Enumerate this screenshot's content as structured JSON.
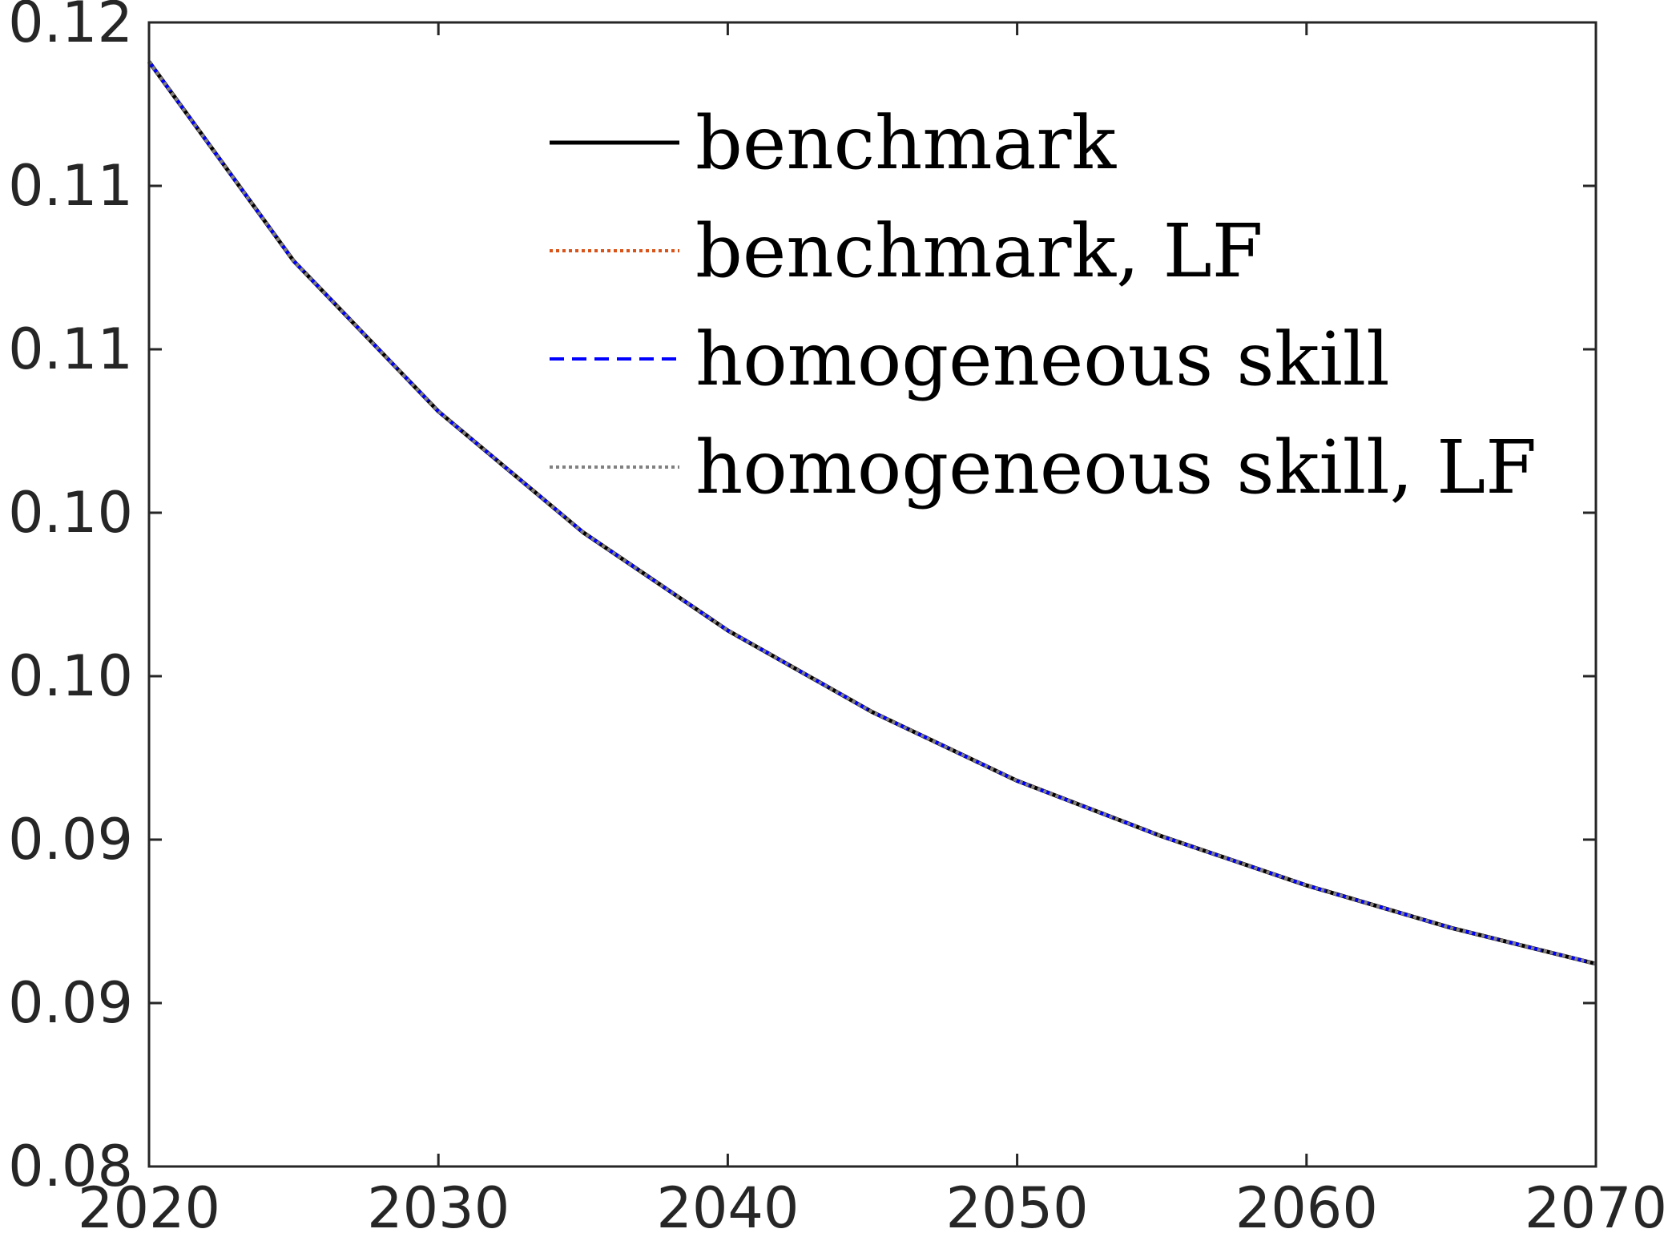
{
  "chart_data": {
    "type": "line",
    "title": "",
    "xlabel": "",
    "ylabel": "",
    "xlim": [
      2020,
      2070
    ],
    "ylim": [
      0.08,
      0.115
    ],
    "grid": false,
    "legend_position": "top-right",
    "x_ticks": [
      {
        "value": 2020,
        "label": "2020"
      },
      {
        "value": 2030,
        "label": "2030"
      },
      {
        "value": 2040,
        "label": "2040"
      },
      {
        "value": 2050,
        "label": "2050"
      },
      {
        "value": 2060,
        "label": "2060"
      },
      {
        "value": 2070,
        "label": "2070"
      }
    ],
    "y_ticks": [
      {
        "value": 0.08,
        "label": "0.08"
      },
      {
        "value": 0.085,
        "label": "0.09"
      },
      {
        "value": 0.09,
        "label": "0.09"
      },
      {
        "value": 0.095,
        "label": "0.10"
      },
      {
        "value": 0.1,
        "label": "0.10"
      },
      {
        "value": 0.105,
        "label": "0.11"
      },
      {
        "value": 0.11,
        "label": "0.11"
      },
      {
        "value": 0.115,
        "label": "0.12"
      }
    ],
    "x": [
      2020,
      2025,
      2030,
      2035,
      2040,
      2045,
      2050,
      2055,
      2060,
      2065,
      2070
    ],
    "series": [
      {
        "name": "benchmark",
        "color": "#000000",
        "style": "solid",
        "values": [
          0.1138,
          0.1077,
          0.1031,
          0.0994,
          0.0964,
          0.0939,
          0.0918,
          0.0901,
          0.0886,
          0.0873,
          0.0862
        ]
      },
      {
        "name": "benchmark, LF",
        "color": "#d95319",
        "style": "dotted",
        "values": [
          0.1138,
          0.1077,
          0.1031,
          0.0994,
          0.0964,
          0.0939,
          0.0918,
          0.0901,
          0.0886,
          0.0873,
          0.0862
        ]
      },
      {
        "name": "homogeneous skill",
        "color": "#0000ff",
        "style": "dashed",
        "values": [
          0.1138,
          0.1077,
          0.1031,
          0.0994,
          0.0964,
          0.0939,
          0.0918,
          0.0901,
          0.0886,
          0.0873,
          0.0862
        ]
      },
      {
        "name": "homogeneous skill, LF",
        "color": "#808080",
        "style": "dotted",
        "values": [
          0.1138,
          0.1077,
          0.1031,
          0.0994,
          0.0964,
          0.0939,
          0.0918,
          0.0901,
          0.0886,
          0.0873,
          0.0862
        ]
      }
    ]
  }
}
